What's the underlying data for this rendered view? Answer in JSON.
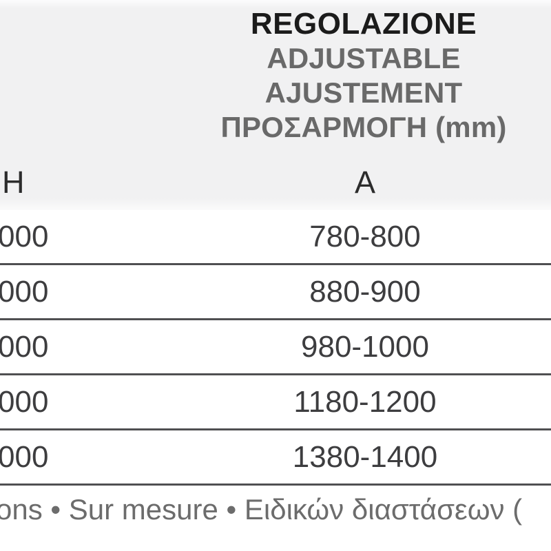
{
  "table": {
    "header": {
      "title_lines": [
        "REGOLAZIONE",
        "ADJUSTABLE",
        "AJUSTEMENT",
        "ΠΡΟΣΑΡΜΟΓΗ (mm)"
      ],
      "col_h_label": "H",
      "col_a_label": "A"
    },
    "rows": [
      {
        "h": "000",
        "a": "780-800"
      },
      {
        "h": "000",
        "a": "880-900"
      },
      {
        "h": "000",
        "a": "980-1000"
      },
      {
        "h": "000",
        "a": "1180-1200"
      },
      {
        "h": "000",
        "a": "1380-1400"
      }
    ],
    "footer_note": "ons • Sur mesure • Ειδικών διαστάσεων ("
  },
  "colors": {
    "header_background": "#f1f1f2",
    "title_text": "#1b1b1b",
    "subtitle_text": "#696969",
    "column_label_text": "#2c2c2c",
    "row_text": "#3d3d3f",
    "row_separator": "#4f4f51",
    "footer_text": "#6c6c6c",
    "row_background": "#ffffff"
  }
}
